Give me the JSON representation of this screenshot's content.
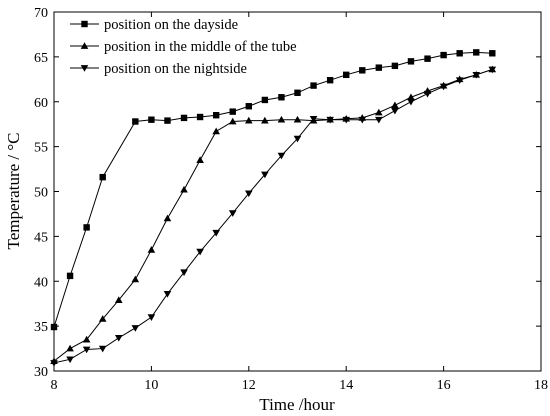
{
  "chart_data": {
    "type": "line",
    "xlabel": "Time /hour",
    "ylabel": "Temperature / °C",
    "xlim": [
      8,
      18
    ],
    "ylim": [
      30,
      70
    ],
    "xticks": [
      8,
      10,
      12,
      14,
      16,
      18
    ],
    "yticks": [
      30,
      35,
      40,
      45,
      50,
      55,
      60,
      65,
      70
    ],
    "grid": false,
    "legend_position": "top-left",
    "series": [
      {
        "name": "position on the dayside",
        "marker": "square",
        "x": [
          8.0,
          8.33,
          8.67,
          9.0,
          9.67,
          10.0,
          10.33,
          10.67,
          11.0,
          11.33,
          11.67,
          12.0,
          12.33,
          12.67,
          13.0,
          13.33,
          13.67,
          14.0,
          14.33,
          14.67,
          15.0,
          15.33,
          15.67,
          16.0,
          16.33,
          16.67,
          17.0
        ],
        "y": [
          34.9,
          40.6,
          46.0,
          51.6,
          57.8,
          58.0,
          57.9,
          58.2,
          58.3,
          58.5,
          58.9,
          59.5,
          60.2,
          60.5,
          61.0,
          61.8,
          62.4,
          63.0,
          63.5,
          63.8,
          64.0,
          64.5,
          64.8,
          65.2,
          65.4,
          65.5,
          65.4
        ]
      },
      {
        "name": "position in the middle of the tube",
        "marker": "triangle-up",
        "x": [
          8.0,
          8.33,
          8.67,
          9.0,
          9.33,
          9.67,
          10.0,
          10.33,
          10.67,
          11.0,
          11.33,
          11.67,
          12.0,
          12.33,
          12.67,
          13.0,
          13.33,
          13.67,
          14.0,
          14.33,
          14.67,
          15.0,
          15.33,
          15.67,
          16.0,
          16.33,
          16.67,
          17.0
        ],
        "y": [
          31.1,
          32.5,
          33.5,
          35.8,
          37.9,
          40.2,
          43.5,
          47.0,
          50.2,
          53.5,
          56.7,
          57.8,
          57.9,
          57.9,
          58.0,
          58.0,
          57.9,
          58.0,
          58.1,
          58.2,
          58.8,
          59.6,
          60.5,
          61.2,
          61.8,
          62.5,
          63.0,
          63.6
        ]
      },
      {
        "name": "position on the nightside",
        "marker": "triangle-down",
        "x": [
          8.0,
          8.33,
          8.67,
          9.0,
          9.33,
          9.67,
          10.0,
          10.33,
          10.67,
          11.0,
          11.33,
          11.67,
          12.0,
          12.33,
          12.67,
          13.0,
          13.33,
          13.67,
          14.0,
          14.33,
          14.67,
          15.0,
          15.33,
          15.67,
          16.0,
          16.33,
          16.67,
          17.0
        ],
        "y": [
          30.9,
          31.3,
          32.4,
          32.5,
          33.7,
          34.8,
          36.0,
          38.6,
          41.0,
          43.3,
          45.4,
          47.6,
          49.8,
          51.9,
          54.0,
          55.9,
          58.1,
          58.0,
          58.0,
          58.0,
          58.0,
          59.0,
          60.0,
          60.9,
          61.7,
          62.4,
          63.0,
          63.6
        ]
      }
    ]
  }
}
